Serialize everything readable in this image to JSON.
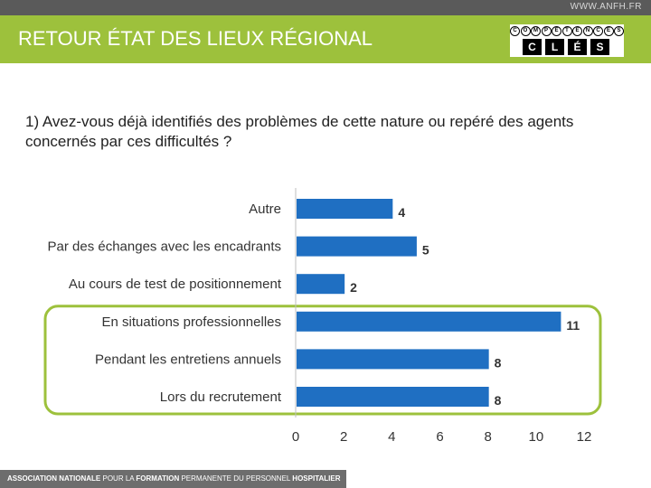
{
  "header": {
    "site_url": "WWW.ANFH.FR",
    "title": "RETOUR ÉTAT DES LIEUX RÉGIONAL"
  },
  "logo": {
    "top_letters": [
      "C",
      "O",
      "M",
      "P",
      "É",
      "T",
      "E",
      "N",
      "C",
      "E",
      "S"
    ],
    "bottom_letters": [
      "C",
      "L",
      "É",
      "S"
    ]
  },
  "question": "1) Avez-vous déjà identifiés des problèmes de cette nature ou repéré des agents concernés par ces difficultés ?",
  "footer": {
    "part1": "ASSOCIATION NATIONALE",
    "part2": " POUR LA ",
    "part3": "FORMATION",
    "part4": " PERMANENTE DU PERSONNEL ",
    "part5": "HOSPITALIER"
  },
  "colors": {
    "bar": "#1f6fc2",
    "highlight": "#9dc13c",
    "header": "#9dc13c"
  },
  "chart_data": {
    "type": "bar",
    "orientation": "horizontal",
    "categories": [
      "Autre",
      "Par des échanges avec les encadrants",
      "Au cours de test de positionnement",
      "En situations professionnelles",
      "Pendant les entretiens annuels",
      "Lors du recrutement"
    ],
    "values": [
      4,
      5,
      2,
      11,
      8,
      8
    ],
    "xlim": [
      0,
      12
    ],
    "xticks": [
      0,
      2,
      4,
      6,
      8,
      10,
      12
    ],
    "highlighted_categories": [
      "En situations professionnelles",
      "Pendant les entretiens annuels",
      "Lors du recrutement"
    ],
    "title": "",
    "xlabel": "",
    "ylabel": ""
  }
}
